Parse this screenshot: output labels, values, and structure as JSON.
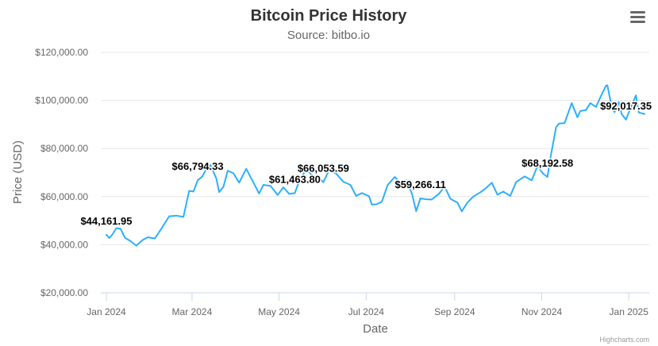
{
  "chart_data": {
    "type": "line",
    "title": "Bitcoin Price History",
    "subtitle": "Source: bitbo.io",
    "xlabel": "Date",
    "ylabel": "Price (USD)",
    "credits": "Highcharts.com",
    "ylim": [
      20000,
      120000
    ],
    "xlim": [
      "2024-01-01",
      "2025-01-12"
    ],
    "y_ticks": [
      {
        "value": 20000,
        "label": "$20,000.00"
      },
      {
        "value": 40000,
        "label": "$40,000.00"
      },
      {
        "value": 60000,
        "label": "$60,000.00"
      },
      {
        "value": 80000,
        "label": "$80,000.00"
      },
      {
        "value": 100000,
        "label": "$100,000.00"
      },
      {
        "value": 120000,
        "label": "$120,000.00"
      }
    ],
    "x_ticks": [
      {
        "value": "2024-01-01",
        "label": "Jan 2024"
      },
      {
        "value": "2024-03-01",
        "label": "Mar 2024"
      },
      {
        "value": "2024-05-01",
        "label": "May 2024"
      },
      {
        "value": "2024-07-01",
        "label": "Jul 2024"
      },
      {
        "value": "2024-09-01",
        "label": "Sep 2024"
      },
      {
        "value": "2024-11-01",
        "label": "Nov 2024"
      },
      {
        "value": "2025-01-01",
        "label": "Jan 2025"
      }
    ],
    "grid": true,
    "legend": "none",
    "color": "#2caffe",
    "series": [
      {
        "points": [
          [
            "2024-01-01",
            44162
          ],
          [
            "2024-01-03",
            42800
          ],
          [
            "2024-01-05",
            44100
          ],
          [
            "2024-01-08",
            46900
          ],
          [
            "2024-01-11",
            46600
          ],
          [
            "2024-01-14",
            42900
          ],
          [
            "2024-01-18",
            41500
          ],
          [
            "2024-01-22",
            39600
          ],
          [
            "2024-01-26",
            41800
          ],
          [
            "2024-01-30",
            43100
          ],
          [
            "2024-02-04",
            42600
          ],
          [
            "2024-02-09",
            47100
          ],
          [
            "2024-02-14",
            51800
          ],
          [
            "2024-02-19",
            52100
          ],
          [
            "2024-02-24",
            51600
          ],
          [
            "2024-02-28",
            62400
          ],
          [
            "2024-03-02",
            62100
          ],
          [
            "2024-03-05",
            66794
          ],
          [
            "2024-03-08",
            68300
          ],
          [
            "2024-03-11",
            71400
          ],
          [
            "2024-03-14",
            73100
          ],
          [
            "2024-03-18",
            67600
          ],
          [
            "2024-03-20",
            61900
          ],
          [
            "2024-03-23",
            64100
          ],
          [
            "2024-03-26",
            70800
          ],
          [
            "2024-03-30",
            69700
          ],
          [
            "2024-04-03",
            65800
          ],
          [
            "2024-04-08",
            71600
          ],
          [
            "2024-04-12",
            67100
          ],
          [
            "2024-04-17",
            61300
          ],
          [
            "2024-04-20",
            64900
          ],
          [
            "2024-04-25",
            64500
          ],
          [
            "2024-04-30",
            60700
          ],
          [
            "2024-05-04",
            63900
          ],
          [
            "2024-05-08",
            61200
          ],
          [
            "2024-05-12",
            61463
          ],
          [
            "2024-05-15",
            66300
          ],
          [
            "2024-05-20",
            71400
          ],
          [
            "2024-05-24",
            68900
          ],
          [
            "2024-05-29",
            67600
          ],
          [
            "2024-06-01",
            66054
          ],
          [
            "2024-06-05",
            71100
          ],
          [
            "2024-06-10",
            69600
          ],
          [
            "2024-06-15",
            66200
          ],
          [
            "2024-06-20",
            64900
          ],
          [
            "2024-06-24",
            60300
          ],
          [
            "2024-06-28",
            61500
          ],
          [
            "2024-07-03",
            60200
          ],
          [
            "2024-07-05",
            56700
          ],
          [
            "2024-07-08",
            56800
          ],
          [
            "2024-07-12",
            57900
          ],
          [
            "2024-07-16",
            64800
          ],
          [
            "2024-07-21",
            68200
          ],
          [
            "2024-07-25",
            65800
          ],
          [
            "2024-07-29",
            66800
          ],
          [
            "2024-08-02",
            61400
          ],
          [
            "2024-08-05",
            54000
          ],
          [
            "2024-08-08",
            59266
          ],
          [
            "2024-08-12",
            58900
          ],
          [
            "2024-08-16",
            58800
          ],
          [
            "2024-08-21",
            61200
          ],
          [
            "2024-08-25",
            64200
          ],
          [
            "2024-08-29",
            59100
          ],
          [
            "2024-09-03",
            57500
          ],
          [
            "2024-09-06",
            53900
          ],
          [
            "2024-09-10",
            57600
          ],
          [
            "2024-09-14",
            60000
          ],
          [
            "2024-09-19",
            61800
          ],
          [
            "2024-09-23",
            63600
          ],
          [
            "2024-09-27",
            65800
          ],
          [
            "2024-10-01",
            60800
          ],
          [
            "2024-10-05",
            62100
          ],
          [
            "2024-10-10",
            60300
          ],
          [
            "2024-10-14",
            66000
          ],
          [
            "2024-10-20",
            68400
          ],
          [
            "2024-10-25",
            66800
          ],
          [
            "2024-10-29",
            72700
          ],
          [
            "2024-11-02",
            69500
          ],
          [
            "2024-11-05",
            68193
          ],
          [
            "2024-11-07",
            75800
          ],
          [
            "2024-11-11",
            88700
          ],
          [
            "2024-11-13",
            90400
          ],
          [
            "2024-11-17",
            90600
          ],
          [
            "2024-11-22",
            98900
          ],
          [
            "2024-11-26",
            93000
          ],
          [
            "2024-11-28",
            95600
          ],
          [
            "2024-12-02",
            96000
          ],
          [
            "2024-12-05",
            98900
          ],
          [
            "2024-12-09",
            97300
          ],
          [
            "2024-12-12",
            101200
          ],
          [
            "2024-12-16",
            106100
          ],
          [
            "2024-12-17",
            106300
          ],
          [
            "2024-12-20",
            97500
          ],
          [
            "2024-12-22",
            95100
          ],
          [
            "2024-12-25",
            99300
          ],
          [
            "2024-12-27",
            94300
          ],
          [
            "2024-12-30",
            92017
          ],
          [
            "2025-01-03",
            98000
          ],
          [
            "2025-01-06",
            102100
          ],
          [
            "2025-01-08",
            95000
          ],
          [
            "2025-01-10",
            94700
          ],
          [
            "2025-01-12",
            94400
          ]
        ]
      }
    ],
    "data_labels": [
      {
        "x": "2024-01-01",
        "y": 44161.95,
        "label": "$44,161.95"
      },
      {
        "x": "2024-03-05",
        "y": 66794.33,
        "label": "$66,794.33"
      },
      {
        "x": "2024-05-12",
        "y": 61463.8,
        "label": "$61,463.80"
      },
      {
        "x": "2024-06-01",
        "y": 66053.59,
        "label": "$66,053.59"
      },
      {
        "x": "2024-08-08",
        "y": 59266.11,
        "label": "$59,266.11"
      },
      {
        "x": "2024-11-05",
        "y": 68192.58,
        "label": "$68,192.58"
      },
      {
        "x": "2024-12-30",
        "y": 92017.35,
        "label": "$92,017.35"
      }
    ]
  }
}
